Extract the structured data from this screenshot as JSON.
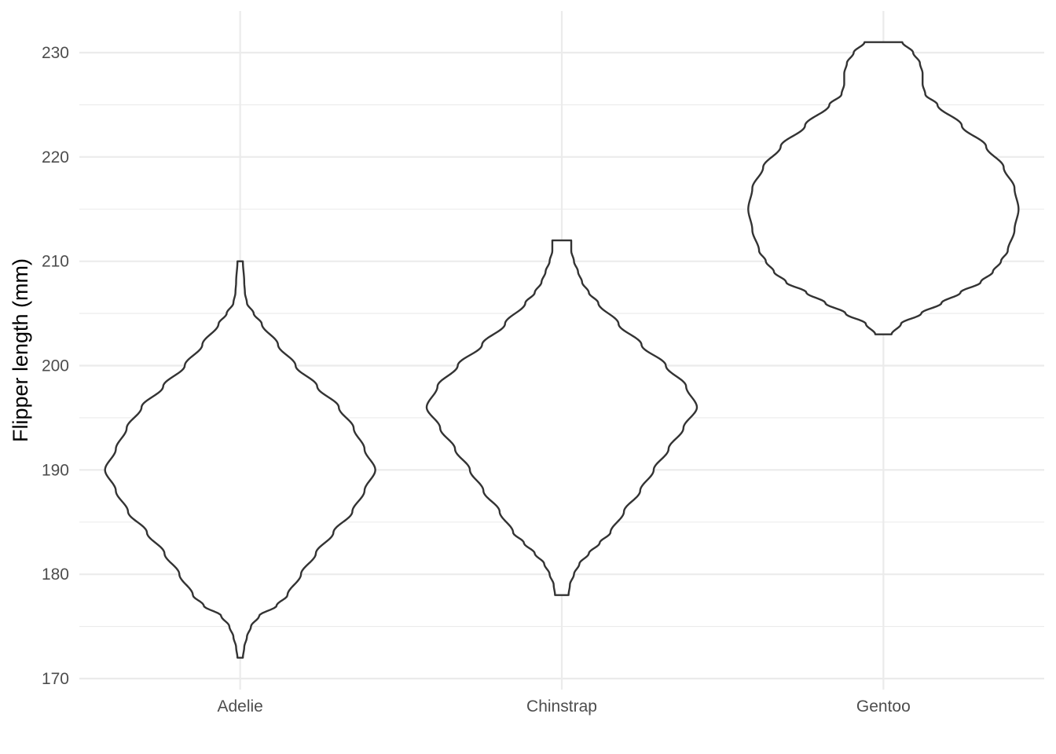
{
  "chart_data": {
    "type": "violin",
    "title": "",
    "xlabel": "",
    "ylabel": "Flipper length (mm)",
    "ylim": [
      169,
      233
    ],
    "yticks": [
      170,
      180,
      190,
      200,
      210,
      220,
      230
    ],
    "grid": true,
    "legend": "none",
    "colors": {
      "outline": "#333333",
      "fill": "#ffffff",
      "grid": "#ebebeb",
      "tick_text": "#4d4d4d"
    },
    "categories": [
      "Adelie",
      "Chinstrap",
      "Gentoo"
    ],
    "series": [
      {
        "category": "Adelie",
        "min": 172,
        "max": 210,
        "profile": [
          [
            172,
            0.02
          ],
          [
            173,
            0.03
          ],
          [
            174,
            0.05
          ],
          [
            175,
            0.08
          ],
          [
            176,
            0.14
          ],
          [
            177,
            0.27
          ],
          [
            178,
            0.35
          ],
          [
            180,
            0.45
          ],
          [
            182,
            0.56
          ],
          [
            184,
            0.69
          ],
          [
            186,
            0.83
          ],
          [
            188,
            0.92
          ],
          [
            190,
            1.0
          ],
          [
            192,
            0.92
          ],
          [
            194,
            0.84
          ],
          [
            196,
            0.73
          ],
          [
            198,
            0.57
          ],
          [
            200,
            0.41
          ],
          [
            202,
            0.28
          ],
          [
            204,
            0.16
          ],
          [
            205,
            0.1
          ],
          [
            206,
            0.05
          ],
          [
            207,
            0.035
          ],
          [
            208,
            0.03
          ],
          [
            210,
            0.02
          ]
        ]
      },
      {
        "category": "Chinstrap",
        "min": 178,
        "max": 212,
        "profile": [
          [
            178,
            0.05
          ],
          [
            179,
            0.06
          ],
          [
            180,
            0.09
          ],
          [
            181,
            0.13
          ],
          [
            182,
            0.2
          ],
          [
            183,
            0.28
          ],
          [
            184,
            0.36
          ],
          [
            186,
            0.46
          ],
          [
            188,
            0.58
          ],
          [
            190,
            0.68
          ],
          [
            192,
            0.79
          ],
          [
            194,
            0.9
          ],
          [
            196,
            1.0
          ],
          [
            198,
            0.92
          ],
          [
            200,
            0.77
          ],
          [
            202,
            0.59
          ],
          [
            204,
            0.42
          ],
          [
            206,
            0.27
          ],
          [
            207,
            0.2
          ],
          [
            208,
            0.15
          ],
          [
            209,
            0.12
          ],
          [
            210,
            0.09
          ],
          [
            211,
            0.07
          ],
          [
            212,
            0.07
          ]
        ]
      },
      {
        "category": "Gentoo",
        "min": 203,
        "max": 231,
        "profile": [
          [
            203,
            0.06
          ],
          [
            204,
            0.13
          ],
          [
            205,
            0.28
          ],
          [
            206,
            0.43
          ],
          [
            207,
            0.57
          ],
          [
            208,
            0.72
          ],
          [
            209,
            0.81
          ],
          [
            210,
            0.87
          ],
          [
            211,
            0.92
          ],
          [
            213,
            0.97
          ],
          [
            215,
            1.0
          ],
          [
            217,
            0.97
          ],
          [
            219,
            0.89
          ],
          [
            221,
            0.76
          ],
          [
            223,
            0.58
          ],
          [
            225,
            0.4
          ],
          [
            226,
            0.31
          ],
          [
            227,
            0.29
          ],
          [
            228,
            0.29
          ],
          [
            229,
            0.27
          ],
          [
            230,
            0.22
          ],
          [
            231,
            0.14
          ]
        ]
      }
    ]
  }
}
